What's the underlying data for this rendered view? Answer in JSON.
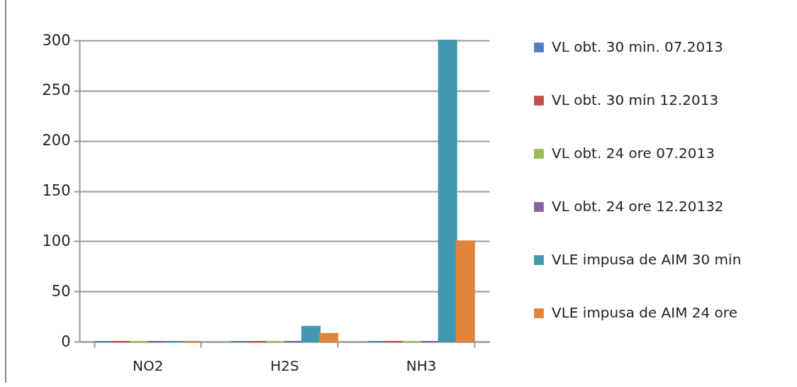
{
  "chart_data": {
    "type": "bar",
    "categories": [
      "NO2",
      "H2S",
      "NH3"
    ],
    "series": [
      {
        "name": "VL obt. 30 min. 07.2013",
        "color": "#4f81bd",
        "values": [
          0,
          0,
          0
        ]
      },
      {
        "name": "VL  obt. 30 min 12.2013",
        "color": "#c0504d",
        "values": [
          0,
          0,
          0
        ]
      },
      {
        "name": "VL obt. 24 ore 07.2013",
        "color": "#9bbb59",
        "values": [
          0,
          0,
          0
        ]
      },
      {
        "name": "VL obt. 24 ore 12.20132",
        "color": "#8064a2",
        "values": [
          0,
          0,
          0
        ]
      },
      {
        "name": "VLE impusa de AIM 30 min",
        "color": "#4198b0",
        "values": [
          0,
          15,
          300
        ]
      },
      {
        "name": "VLE impusa de AIM 24 ore",
        "color": "#e0843c",
        "values": [
          0,
          8,
          100
        ]
      }
    ],
    "ylim": [
      0,
      300
    ],
    "yticks": [
      0,
      50,
      100,
      150,
      200,
      250,
      300
    ],
    "grid": "y",
    "legend": "right"
  }
}
